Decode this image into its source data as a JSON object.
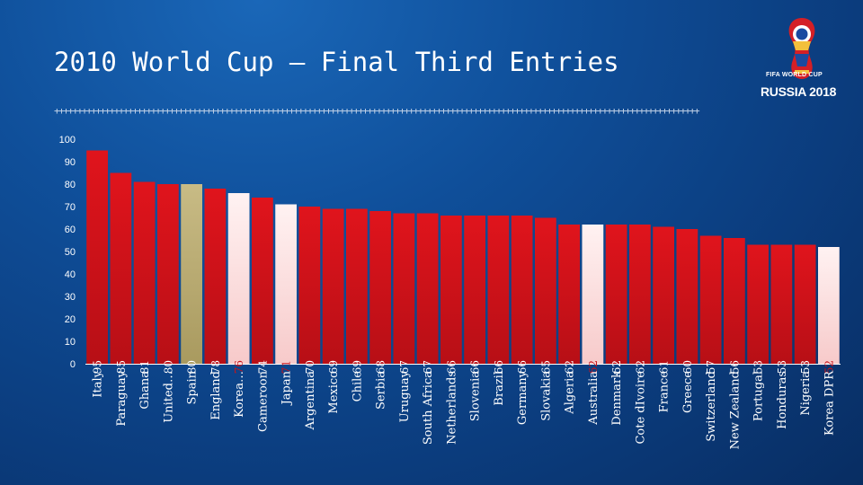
{
  "slide": {
    "title": "2010 World Cup  –  Final Third Entries",
    "logo_line1": "FIFA WORLD CUP",
    "logo_line2": "RUSSIA 2018"
  },
  "colors": {
    "bar_default": "#d8141b",
    "bar_highlight_light": "#fde4e4",
    "bar_highlight_gold": "#bdb078",
    "label_on_dark": "#ffffff",
    "label_on_light": "#c8131a"
  },
  "chart_data": {
    "type": "bar",
    "title": "",
    "xlabel": "",
    "ylabel": "",
    "ylim": [
      0,
      100
    ],
    "yticks": [
      0,
      10,
      20,
      30,
      40,
      50,
      60,
      70,
      80,
      90,
      100
    ],
    "grid": false,
    "categories": [
      "Italy",
      "Paraguay",
      "Ghana",
      "United…",
      "Spain",
      "England",
      "Korea…",
      "Cameroon",
      "Japan",
      "Argentina",
      "Mexico",
      "Chile",
      "Serbia",
      "Uruguay",
      "South Africa",
      "Netherlands",
      "Slovenia",
      "Brazil",
      "Germany",
      "Slovakia",
      "Algeria",
      "Australia",
      "Denmark",
      "Cote dIvoire",
      "France",
      "Greece",
      "Switzerland",
      "New Zealand",
      "Portugal",
      "Honduras",
      "Nigeria",
      "Korea DPR"
    ],
    "values": [
      95,
      85,
      81,
      80,
      80,
      78,
      76,
      74,
      71,
      70,
      69,
      69,
      68,
      67,
      67,
      66,
      66,
      66,
      66,
      65,
      62,
      62,
      62,
      62,
      61,
      60,
      57,
      56,
      53,
      53,
      53,
      52
    ],
    "highlight": [
      "red",
      "red",
      "red",
      "red",
      "gold",
      "red",
      "light",
      "red",
      "light",
      "red",
      "red",
      "red",
      "red",
      "red",
      "red",
      "red",
      "red",
      "red",
      "red",
      "red",
      "red",
      "light",
      "red",
      "red",
      "red",
      "red",
      "red",
      "red",
      "red",
      "red",
      "red",
      "light"
    ]
  }
}
